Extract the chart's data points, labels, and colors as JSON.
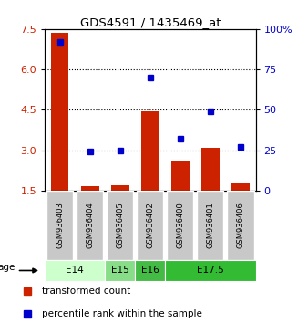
{
  "title": "GDS4591 / 1435469_at",
  "samples": [
    "GSM936403",
    "GSM936404",
    "GSM936405",
    "GSM936402",
    "GSM936400",
    "GSM936401",
    "GSM936406"
  ],
  "transformed_counts": [
    7.35,
    1.65,
    1.7,
    4.45,
    2.6,
    3.1,
    1.75
  ],
  "percentile_ranks": [
    92,
    24,
    25,
    70,
    32,
    49,
    27
  ],
  "age_groups": [
    {
      "label": "E14",
      "samples": [
        0,
        1
      ],
      "color": "#ccffcc"
    },
    {
      "label": "E15",
      "samples": [
        2
      ],
      "color": "#88dd88"
    },
    {
      "label": "E16",
      "samples": [
        3
      ],
      "color": "#44bb44"
    },
    {
      "label": "E17.5",
      "samples": [
        4,
        5,
        6
      ],
      "color": "#33bb33"
    }
  ],
  "bar_color": "#cc2200",
  "dot_color": "#0000cc",
  "left_yticks": [
    1.5,
    3.0,
    4.5,
    6.0,
    7.5
  ],
  "right_yticks": [
    0,
    25,
    50,
    75,
    100
  ],
  "left_ylim": [
    1.5,
    7.5
  ],
  "right_ylim": [
    0,
    100
  ],
  "bar_bottom": 1.5,
  "right_ytick_labels": [
    "0",
    "25",
    "50",
    "75",
    "100%"
  ],
  "hline_values": [
    3.0,
    4.5,
    6.0
  ],
  "age_label": "age",
  "legend_red": "transformed count",
  "legend_blue": "percentile rank within the sample",
  "sample_box_color": "#c8c8c8",
  "plot_bg": "#ffffff"
}
